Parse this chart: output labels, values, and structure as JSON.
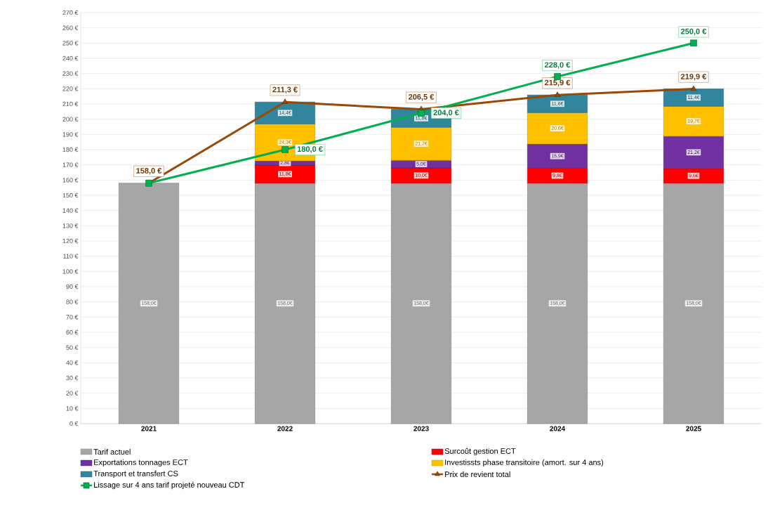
{
  "chart_data": {
    "type": "bar",
    "stacked": true,
    "categories": [
      "2021",
      "2022",
      "2023",
      "2024",
      "2025"
    ],
    "series": [
      {
        "name": "Tarif actuel",
        "color": "#a6a6a6",
        "values": [
          158.0,
          158.0,
          158.0,
          158.0,
          158.0
        ],
        "value_labels": [
          "158,0€",
          "158,0€",
          "158,0€",
          "158,0€",
          "158,0€"
        ]
      },
      {
        "name": "Surcoût gestion ECT",
        "color": "#ff0000",
        "values": [
          null,
          11.8,
          10.0,
          9.8,
          9.6
        ],
        "value_labels": [
          null,
          "11,8€",
          "10,0€",
          "9,8€",
          "9,6€"
        ]
      },
      {
        "name": "Exportations tonnages ECT",
        "color": "#7030a0",
        "values": [
          null,
          2.8,
          5.0,
          15.9,
          21.2
        ],
        "value_labels": [
          null,
          "2,8€",
          "5,0€",
          "15,9€",
          "21,2€"
        ]
      },
      {
        "name": "Investissts phase transitoire (amort. sur 4 ans)",
        "color": "#ffc000",
        "values": [
          null,
          24.3,
          21.7,
          20.6,
          19.7
        ],
        "value_labels": [
          null,
          "24,3€",
          "21,7€",
          "20,6€",
          "19,7€"
        ]
      },
      {
        "name": "Transport et transfert CS",
        "color": "#31859c",
        "values": [
          null,
          14.4,
          11.8,
          11.6,
          11.4
        ],
        "value_labels": [
          null,
          "14,4€",
          "11,8€",
          "11,6€",
          "11,4€"
        ]
      },
      {
        "name": "Prix de revient total",
        "type": "line",
        "marker": "triangle",
        "color": "#984807",
        "values": [
          158.0,
          211.3,
          206.5,
          215.9,
          219.9
        ],
        "value_labels": [
          "158,0 €",
          "211,3 €",
          "206,5 €",
          "215,9 €",
          "219,9 €"
        ]
      },
      {
        "name": "Lissage sur 4 ans tarif projeté nouveau CDT",
        "type": "line",
        "marker": "square",
        "color": "#00b050",
        "values": [
          158.0,
          180.0,
          204.0,
          228.0,
          250.0
        ],
        "value_labels": [
          null,
          "180,0 €",
          "204,0 €",
          "228,0 €",
          "250,0 €"
        ]
      }
    ],
    "ylim": [
      0,
      270
    ],
    "yticks": [
      {
        "value": 0,
        "label": "0 €"
      },
      {
        "value": 10,
        "label": "10 €"
      },
      {
        "value": 20,
        "label": "20 €"
      },
      {
        "value": 30,
        "label": "30 €"
      },
      {
        "value": 40,
        "label": "40 €"
      },
      {
        "value": 50,
        "label": "50 €"
      },
      {
        "value": 60,
        "label": "60 €"
      },
      {
        "value": 70,
        "label": "70 €"
      },
      {
        "value": 80,
        "label": "80 €"
      },
      {
        "value": 90,
        "label": "90 €"
      },
      {
        "value": 100,
        "label": "100 €"
      },
      {
        "value": 110,
        "label": "110 €"
      },
      {
        "value": 120,
        "label": "120 €"
      },
      {
        "value": 130,
        "label": "130 €"
      },
      {
        "value": 140,
        "label": "140 €"
      },
      {
        "value": 150,
        "label": "150 €"
      },
      {
        "value": 160,
        "label": "160 €"
      },
      {
        "value": 170,
        "label": "170 €"
      },
      {
        "value": 180,
        "label": "180 €"
      },
      {
        "value": 190,
        "label": "190 €"
      },
      {
        "value": 200,
        "label": "200 €"
      },
      {
        "value": 210,
        "label": "210 €"
      },
      {
        "value": 220,
        "label": "220 €"
      },
      {
        "value": 230,
        "label": "230 €"
      },
      {
        "value": 240,
        "label": "240 €"
      },
      {
        "value": 250,
        "label": "250 €"
      },
      {
        "value": 260,
        "label": "260 €"
      },
      {
        "value": 270,
        "label": "270 €"
      }
    ],
    "grid": "y",
    "legend": "bottom"
  }
}
